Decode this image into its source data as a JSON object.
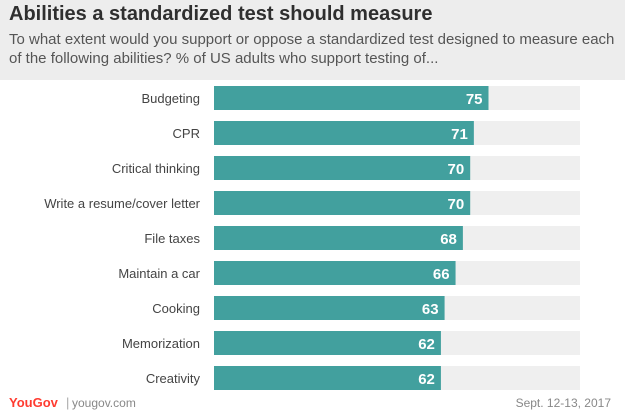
{
  "header": {
    "title": "Abilities a standardized test should measure",
    "subtitle": "To what extent would you support or oppose a standardized  test designed  to measure each of the following abilities? % of US adults who support testing of..."
  },
  "footer": {
    "brand": "YouGov",
    "divider": "|",
    "site": "yougov.com",
    "date": "Sept. 12-13, 2017"
  },
  "chart_data": {
    "type": "bar",
    "orientation": "horizontal",
    "categories": [
      "Budgeting",
      "CPR",
      "Critical thinking",
      "Write a resume/cover letter",
      "File taxes",
      "Maintain a car",
      "Cooking",
      "Memorization",
      "Creativity"
    ],
    "values": [
      75,
      71,
      70,
      70,
      68,
      66,
      63,
      62,
      62
    ],
    "xlim": [
      0,
      100
    ],
    "grid": false,
    "value_labels": true,
    "colors": {
      "bar": "#42a09e",
      "track": "#efefef",
      "label": "#ffffff",
      "category": "#444444"
    }
  }
}
